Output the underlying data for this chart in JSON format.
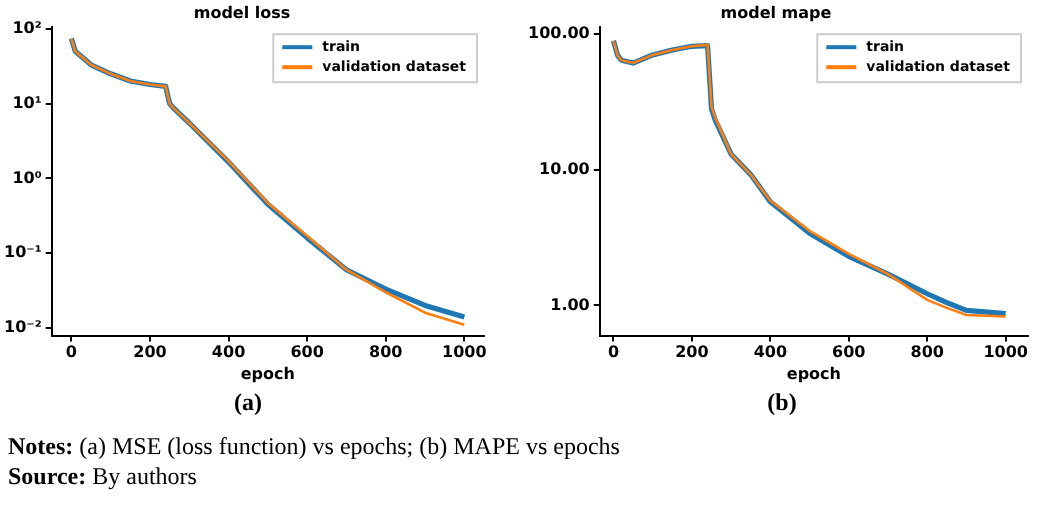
{
  "chart_data": [
    {
      "type": "line",
      "title": "model loss",
      "xlabel": "epoch",
      "log": "y",
      "legend": "top right",
      "xlim": [
        -50,
        1050
      ],
      "xticks": [
        0,
        200,
        400,
        600,
        800,
        1000
      ],
      "ylim": [
        0.0079,
        105
      ],
      "yticks": [
        {
          "value": 0.01,
          "label": "10⁻²"
        },
        {
          "value": 0.1,
          "label": "10⁻¹"
        },
        {
          "value": 1,
          "label": "10⁰"
        },
        {
          "value": 10,
          "label": "10¹"
        },
        {
          "value": 100,
          "label": "10²"
        }
      ],
      "x": [
        0,
        10,
        50,
        100,
        150,
        200,
        240,
        250,
        260,
        300,
        400,
        500,
        600,
        700,
        800,
        900,
        1000
      ],
      "series": [
        {
          "name": "train",
          "color": "#1f77b4",
          "values": [
            74,
            50,
            33,
            25,
            20,
            18,
            17,
            10,
            8.7,
            5.5,
            1.65,
            0.45,
            0.16,
            0.06,
            0.033,
            0.02,
            0.014
          ]
        },
        {
          "name": "validation dataset",
          "color": "#ff7f0e",
          "values": [
            74,
            50,
            33,
            25,
            20,
            18,
            17,
            10,
            8.7,
            5.5,
            1.7,
            0.47,
            0.17,
            0.06,
            0.03,
            0.016,
            0.011
          ]
        }
      ],
      "annotations": [
        "(a)",
        "Notes: (a) MSE (loss function) vs epochs; (b) MAPE vs epochs",
        "Source: By authors"
      ]
    },
    {
      "type": "line",
      "title": "model mape",
      "xlabel": "epoch",
      "log": "y",
      "legend": "top right",
      "xlim": [
        -35,
        1057
      ],
      "xticks": [
        0,
        200,
        400,
        600,
        800,
        1000
      ],
      "ylim": [
        0.64,
        112
      ],
      "yticks": [
        {
          "value": 1,
          "label": "1.00"
        },
        {
          "value": 10,
          "label": "10.00"
        },
        {
          "value": 100,
          "label": "100.00"
        }
      ],
      "x": [
        0,
        10,
        20,
        50,
        100,
        150,
        200,
        240,
        250,
        260,
        300,
        350,
        400,
        500,
        600,
        700,
        800,
        850,
        900,
        1000
      ],
      "series": [
        {
          "name": "train",
          "color": "#1f77b4",
          "values": [
            89,
            70,
            64,
            61,
            70,
            76,
            81,
            82,
            28,
            23,
            13,
            9.2,
            5.8,
            3.4,
            2.3,
            1.7,
            1.22,
            1.05,
            0.92,
            0.87
          ]
        },
        {
          "name": "validation dataset",
          "color": "#ff7f0e",
          "values": [
            89,
            70,
            64,
            61,
            70,
            76,
            81,
            83,
            29,
            24,
            13,
            9.2,
            5.9,
            3.55,
            2.4,
            1.7,
            1.1,
            0.96,
            0.85,
            0.83
          ]
        }
      ],
      "annotations": [
        "(b)"
      ]
    }
  ]
}
